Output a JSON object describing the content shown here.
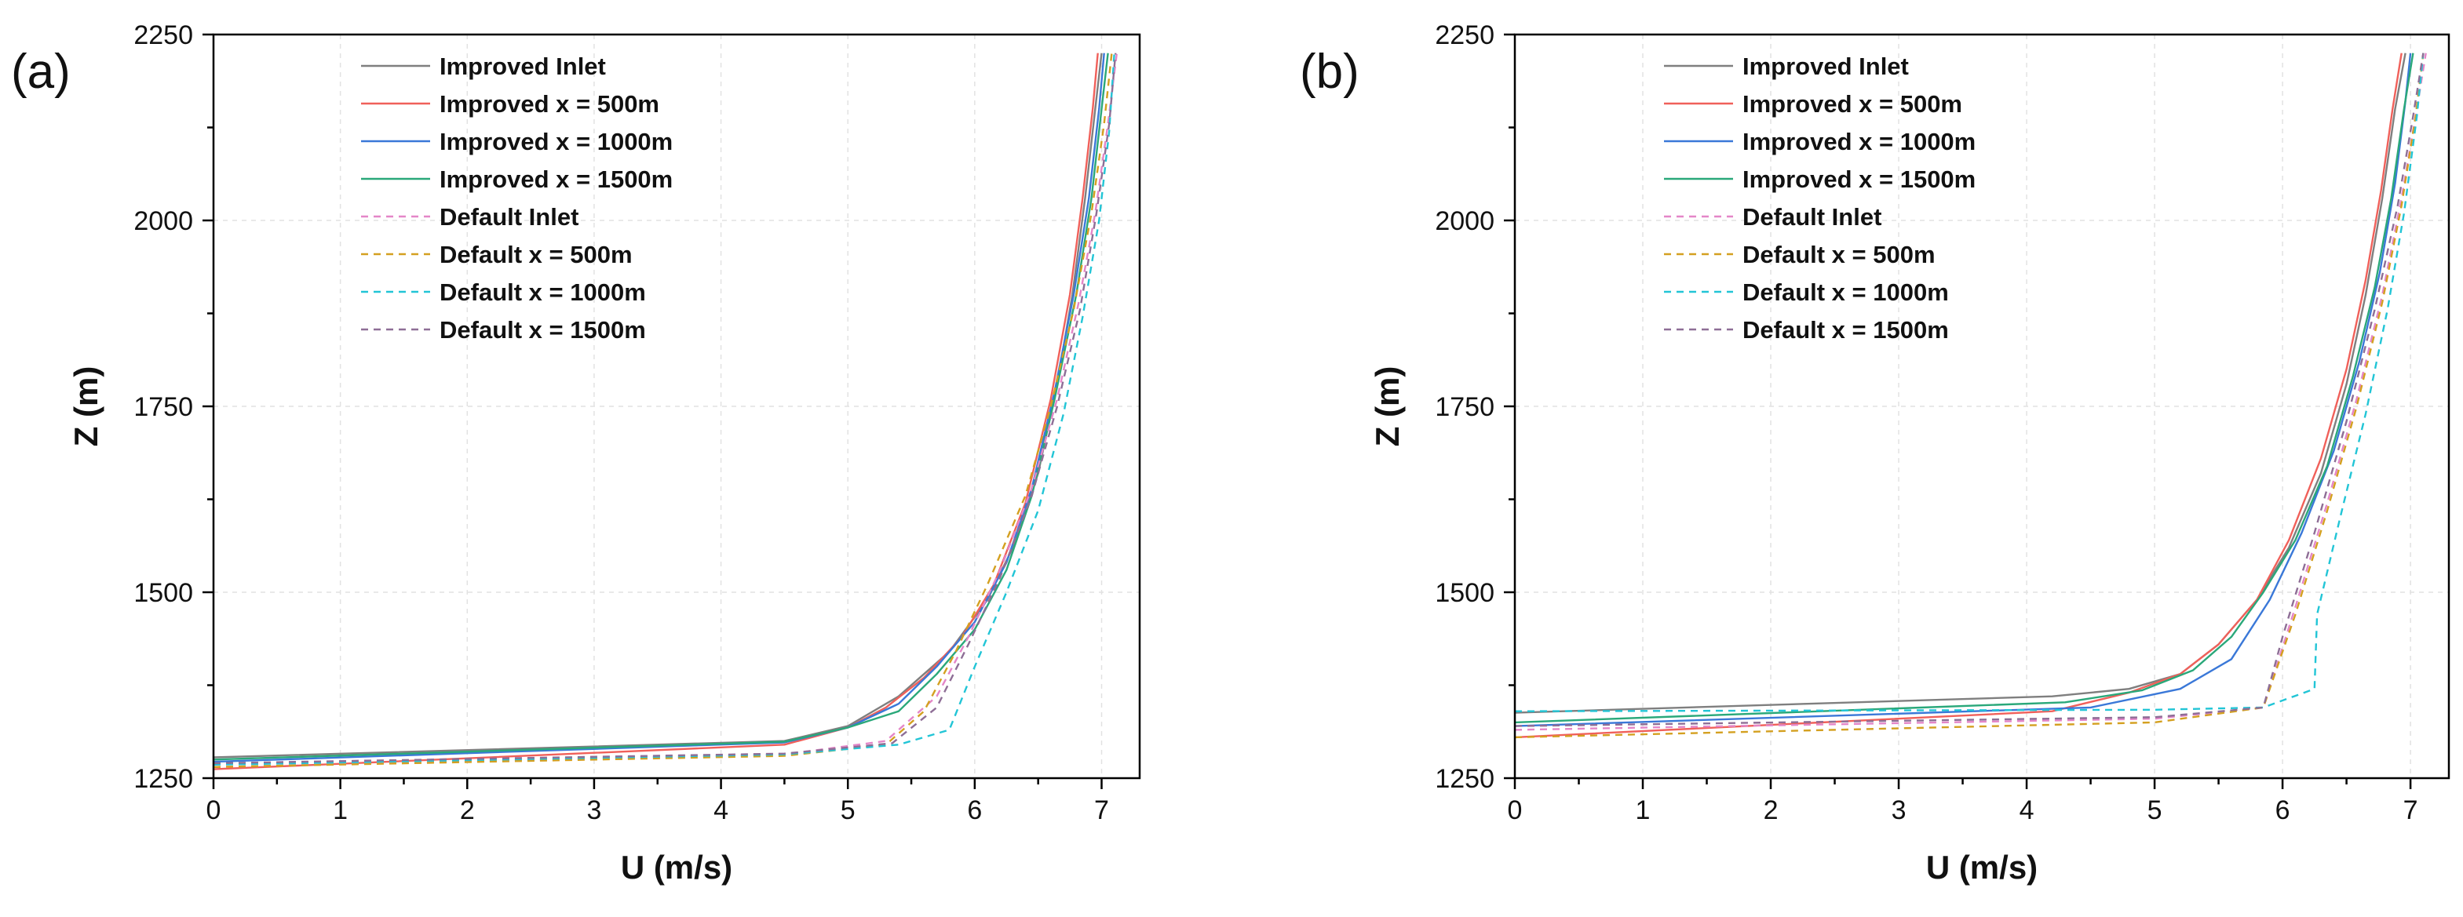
{
  "chart_data": [
    {
      "type": "line",
      "panel_label": "(a)",
      "xlabel": "U (m/s)",
      "ylabel": "Z (m)",
      "xlim": [
        0,
        7.3
      ],
      "ylim": [
        1250,
        2250
      ],
      "xticks": [
        0,
        1,
        2,
        3,
        4,
        5,
        6,
        7
      ],
      "yticks": [
        1250,
        1500,
        1750,
        2000,
        2250
      ],
      "legend_position": "top-left",
      "grid": true,
      "series": [
        {
          "name": "Improved Inlet",
          "color": "#7f7f7f",
          "dash": false,
          "x": [
            0,
            4.5,
            5.0,
            5.4,
            5.8,
            6.1,
            6.3,
            6.5,
            6.65,
            6.77,
            6.87,
            6.95,
            7.0
          ],
          "y": [
            1278,
            1300,
            1320,
            1360,
            1420,
            1490,
            1560,
            1660,
            1780,
            1900,
            2030,
            2150,
            2225
          ]
        },
        {
          "name": "Improved x = 500m",
          "color": "#f0605a",
          "dash": false,
          "x": [
            0,
            4.5,
            5.0,
            5.3,
            5.6,
            5.9,
            6.15,
            6.4,
            6.6,
            6.75,
            6.85,
            6.93,
            6.97
          ],
          "y": [
            1262,
            1295,
            1318,
            1345,
            1385,
            1440,
            1510,
            1620,
            1760,
            1900,
            2030,
            2150,
            2225
          ]
        },
        {
          "name": "Improved x = 1000m",
          "color": "#3a78d8",
          "dash": false,
          "x": [
            0,
            4.5,
            5.0,
            5.4,
            5.7,
            6.0,
            6.25,
            6.45,
            6.63,
            6.78,
            6.9,
            6.98,
            7.02
          ],
          "y": [
            1272,
            1298,
            1318,
            1350,
            1400,
            1460,
            1540,
            1640,
            1770,
            1900,
            2030,
            2150,
            2225
          ]
        },
        {
          "name": "Improved x = 1500m",
          "color": "#2aa87a",
          "dash": false,
          "x": [
            0,
            4.5,
            5.0,
            5.4,
            5.7,
            6.0,
            6.25,
            6.45,
            6.63,
            6.8,
            6.92,
            7.0,
            7.05
          ],
          "y": [
            1275,
            1299,
            1318,
            1340,
            1390,
            1450,
            1530,
            1630,
            1760,
            1900,
            2030,
            2150,
            2225
          ]
        },
        {
          "name": "Default Inlet",
          "color": "#e486c8",
          "dash": true,
          "x": [
            0,
            4.5,
            5.3,
            5.7,
            5.95,
            6.2,
            6.45,
            6.65,
            6.82,
            6.95,
            7.05,
            7.12
          ],
          "y": [
            1265,
            1282,
            1300,
            1360,
            1440,
            1530,
            1640,
            1760,
            1890,
            2010,
            2130,
            2225
          ]
        },
        {
          "name": "Default x = 500m",
          "color": "#d4a020",
          "dash": true,
          "x": [
            0,
            4.5,
            5.3,
            5.6,
            5.85,
            6.1,
            6.4,
            6.6,
            6.78,
            6.92,
            7.02,
            7.08
          ],
          "y": [
            1265,
            1280,
            1295,
            1340,
            1420,
            1510,
            1630,
            1750,
            1880,
            2010,
            2130,
            2225
          ]
        },
        {
          "name": "Default x = 1000m",
          "color": "#22c5d6",
          "dash": true,
          "x": [
            0,
            4.5,
            5.4,
            5.8,
            6.0,
            6.25,
            6.5,
            6.7,
            6.85,
            6.98,
            7.06,
            7.1
          ],
          "y": [
            1268,
            1282,
            1295,
            1315,
            1400,
            1500,
            1610,
            1740,
            1870,
            2000,
            2120,
            2225
          ]
        },
        {
          "name": "Default x = 1500m",
          "color": "#8e6e96",
          "dash": true,
          "x": [
            0,
            4.5,
            5.35,
            5.7,
            5.95,
            6.2,
            6.45,
            6.65,
            6.83,
            6.96,
            7.06,
            7.11
          ],
          "y": [
            1270,
            1283,
            1297,
            1345,
            1430,
            1520,
            1630,
            1750,
            1880,
            2010,
            2130,
            2225
          ]
        }
      ]
    },
    {
      "type": "line",
      "panel_label": "(b)",
      "xlabel": "U (m/s)",
      "ylabel": "Z (m)",
      "xlim": [
        0,
        7.3
      ],
      "ylim": [
        1250,
        2250
      ],
      "xticks": [
        0,
        1,
        2,
        3,
        4,
        5,
        6,
        7
      ],
      "yticks": [
        1250,
        1500,
        1750,
        2000,
        2250
      ],
      "legend_position": "top-left",
      "grid": true,
      "series": [
        {
          "name": "Improved Inlet",
          "color": "#7f7f7f",
          "dash": false,
          "x": [
            0,
            4.2,
            4.8,
            5.2,
            5.5,
            5.8,
            6.05,
            6.3,
            6.5,
            6.65,
            6.78,
            6.88,
            6.96
          ],
          "y": [
            1338,
            1360,
            1370,
            1390,
            1430,
            1490,
            1560,
            1660,
            1780,
            1900,
            2030,
            2150,
            2225
          ]
        },
        {
          "name": "Improved x = 500m",
          "color": "#f0605a",
          "dash": false,
          "x": [
            0,
            4.2,
            4.8,
            5.2,
            5.5,
            5.8,
            6.05,
            6.3,
            6.5,
            6.65,
            6.77,
            6.86,
            6.93
          ],
          "y": [
            1305,
            1340,
            1365,
            1390,
            1430,
            1490,
            1570,
            1680,
            1800,
            1920,
            2040,
            2150,
            2225
          ]
        },
        {
          "name": "Improved x = 1000m",
          "color": "#3a78d8",
          "dash": false,
          "x": [
            0,
            4.5,
            5.2,
            5.6,
            5.9,
            6.15,
            6.4,
            6.6,
            6.76,
            6.88,
            6.96,
            7.0
          ],
          "y": [
            1320,
            1345,
            1370,
            1410,
            1490,
            1580,
            1690,
            1810,
            1930,
            2050,
            2160,
            2225
          ]
        },
        {
          "name": "Improved x = 1500m",
          "color": "#2aa87a",
          "dash": false,
          "x": [
            0,
            4.3,
            4.9,
            5.3,
            5.6,
            5.85,
            6.1,
            6.35,
            6.55,
            6.72,
            6.85,
            6.95,
            7.02
          ],
          "y": [
            1325,
            1352,
            1368,
            1395,
            1440,
            1500,
            1570,
            1670,
            1790,
            1910,
            2030,
            2150,
            2225
          ]
        },
        {
          "name": "Default Inlet",
          "color": "#e486c8",
          "dash": true,
          "x": [
            0,
            5.0,
            5.85,
            6.1,
            6.35,
            6.58,
            6.78,
            6.93,
            7.05,
            7.12
          ],
          "y": [
            1315,
            1330,
            1345,
            1480,
            1620,
            1760,
            1900,
            2030,
            2150,
            2225
          ]
        },
        {
          "name": "Default x = 500m",
          "color": "#d4a020",
          "dash": true,
          "x": [
            0,
            5.0,
            5.85,
            6.1,
            6.35,
            6.58,
            6.78,
            6.93,
            7.04,
            7.1
          ],
          "y": [
            1305,
            1325,
            1345,
            1470,
            1610,
            1750,
            1890,
            2020,
            2140,
            2225
          ]
        },
        {
          "name": "Default x = 1000m",
          "color": "#22c5d6",
          "dash": true,
          "x": [
            0,
            5.0,
            5.85,
            6.25,
            6.27,
            6.45,
            6.65,
            6.82,
            6.95,
            7.05,
            7.1
          ],
          "y": [
            1340,
            1342,
            1345,
            1370,
            1470,
            1600,
            1740,
            1880,
            2010,
            2140,
            2225
          ]
        },
        {
          "name": "Default x = 1500m",
          "color": "#8e6e96",
          "dash": true,
          "x": [
            0,
            5.0,
            5.85,
            6.0,
            6.25,
            6.5,
            6.72,
            6.9,
            7.02,
            7.1
          ],
          "y": [
            1320,
            1332,
            1345,
            1440,
            1580,
            1730,
            1880,
            2020,
            2140,
            2225
          ]
        }
      ]
    }
  ]
}
